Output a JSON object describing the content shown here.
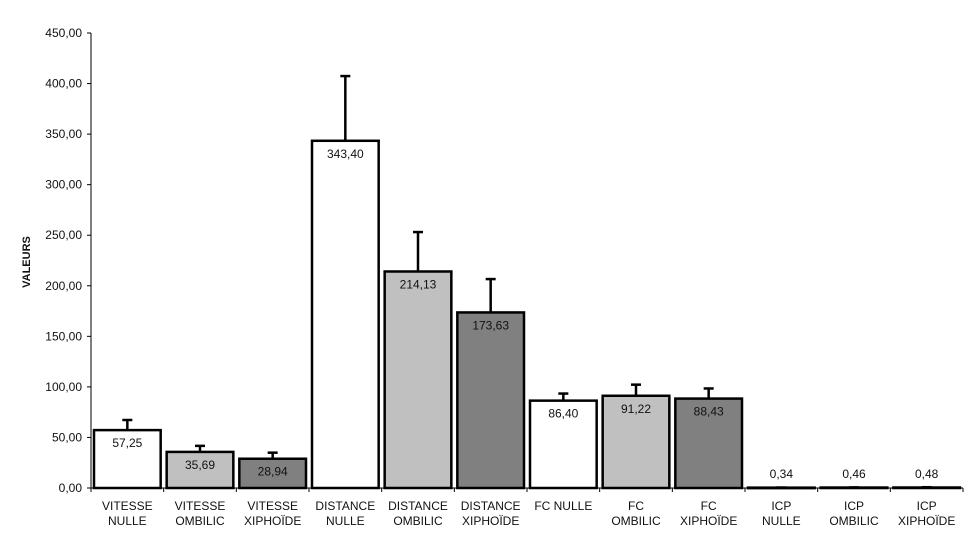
{
  "chart_data": {
    "type": "bar",
    "title": "",
    "xlabel": "",
    "ylabel": "VALEURS",
    "ylim": [
      0,
      450
    ],
    "yticks": [
      "0,00",
      "50,00",
      "100,00",
      "150,00",
      "200,00",
      "250,00",
      "300,00",
      "350,00",
      "400,00",
      "450,00"
    ],
    "grid": false,
    "legend": "none",
    "categories": [
      [
        "VITESSE",
        "NULLE"
      ],
      [
        "VITESSE",
        "OMBILIC"
      ],
      [
        "VITESSE",
        "XIPHOÏDE"
      ],
      [
        "DISTANCE",
        "NULLE"
      ],
      [
        "DISTANCE",
        "OMBILIC"
      ],
      [
        "DISTANCE",
        "XIPHOÏDE"
      ],
      [
        "FC NULLE"
      ],
      [
        "FC",
        "OMBILIC"
      ],
      [
        "FC",
        "XIPHOÏDE"
      ],
      [
        "ICP",
        "NULLE"
      ],
      [
        "ICP",
        "OMBILIC"
      ],
      [
        "ICP",
        "XIPHOÏDE"
      ]
    ],
    "values": [
      57.25,
      35.69,
      28.94,
      343.4,
      214.13,
      173.63,
      86.4,
      91.22,
      88.43,
      0.34,
      0.46,
      0.48
    ],
    "data_labels": [
      "57,25",
      "35,69",
      "28,94",
      "343,40",
      "214,13",
      "173,63",
      "86,40",
      "91,22",
      "88,43",
      "0,34",
      "0,46",
      "0,48"
    ],
    "error_plus": [
      10,
      6,
      6,
      64,
      39,
      33,
      7,
      11,
      10,
      0.1,
      0.1,
      0.3
    ],
    "colors": [
      "#ffffff",
      "#c0c0c0",
      "#808080",
      "#ffffff",
      "#c0c0c0",
      "#808080",
      "#ffffff",
      "#c0c0c0",
      "#808080",
      "#ffffff",
      "#c0c0c0",
      "#808080"
    ]
  }
}
